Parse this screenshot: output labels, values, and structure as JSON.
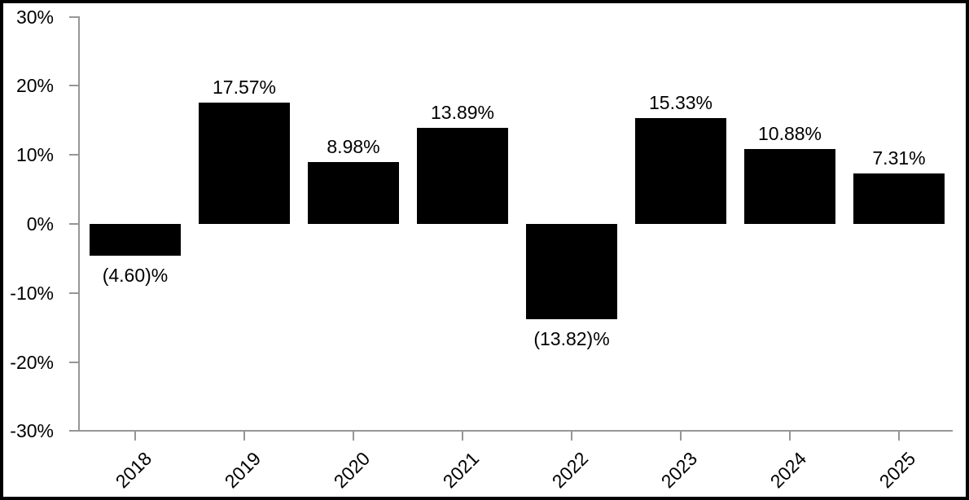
{
  "chart_data": {
    "type": "bar",
    "title": "",
    "categories": [
      "2018",
      "2019",
      "2020",
      "2021",
      "2022",
      "2023",
      "2024",
      "2025"
    ],
    "values": [
      -4.6,
      17.57,
      8.98,
      13.89,
      -13.82,
      15.33,
      10.88,
      7.31
    ],
    "bar_labels": [
      "(4.60)%",
      "17.57%",
      "8.98%",
      "13.89%",
      "(13.82)%",
      "15.33%",
      "10.88%",
      "7.31%"
    ],
    "xlabel": "",
    "ylabel": "",
    "ylim": [
      -30,
      30
    ],
    "yticks": [
      30,
      20,
      10,
      0,
      -10,
      -20,
      -30
    ],
    "ytick_labels": [
      "30%",
      "20%",
      "10%",
      "0%",
      "-10%",
      "-20%",
      "-30%"
    ],
    "grid": false,
    "bar_color": "#000000",
    "axis_color": "#969696",
    "label_color": "#000000",
    "background_color": "#ffffff",
    "frame_color": "#000000"
  }
}
